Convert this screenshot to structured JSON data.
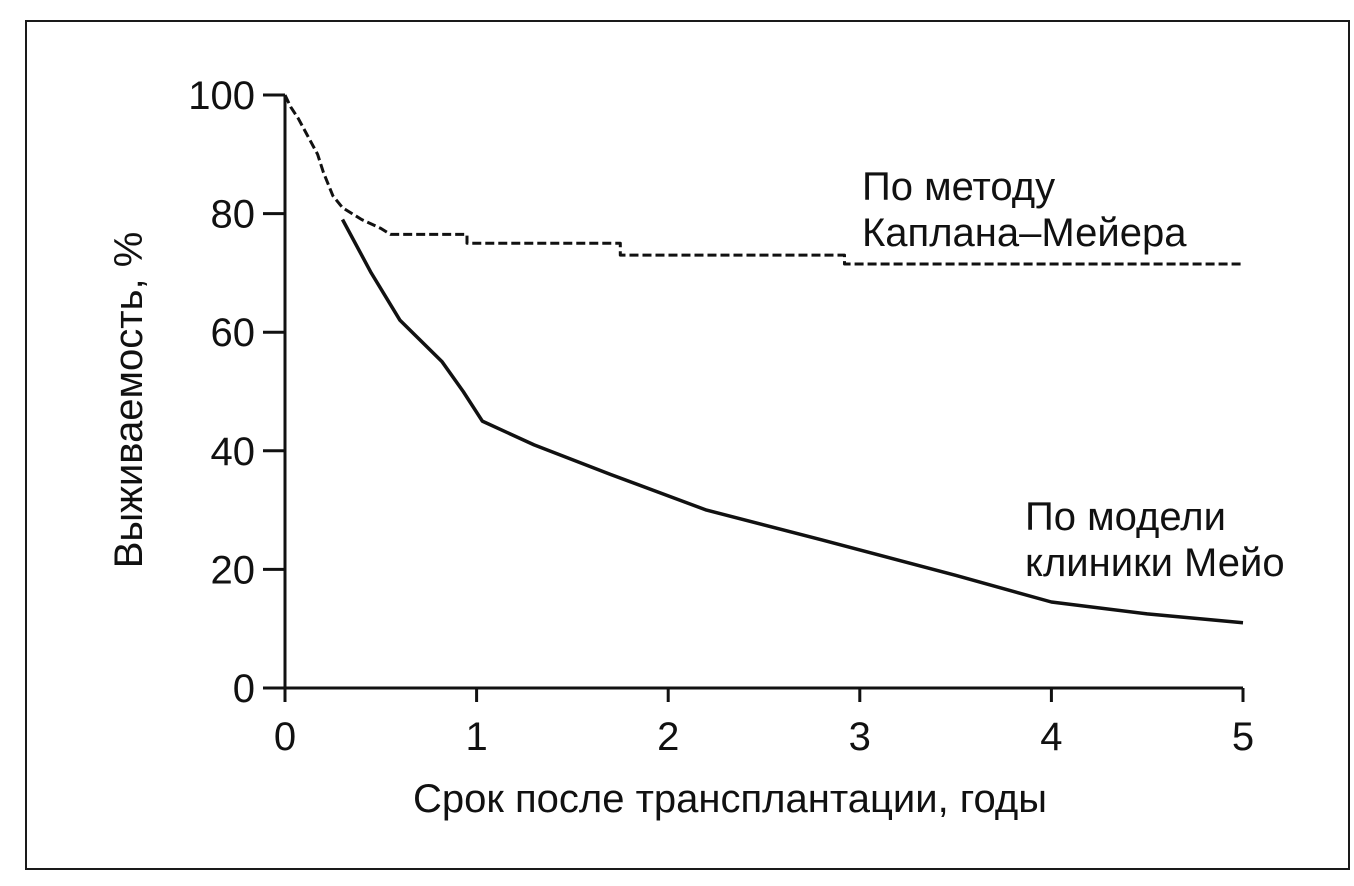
{
  "chart_data": {
    "type": "line",
    "xlabel": "Срок после трансплантации, годы",
    "ylabel": "Выживаемость, %",
    "xlim": [
      0,
      5
    ],
    "ylim": [
      0,
      100
    ],
    "x_ticks": [
      0,
      1,
      2,
      3,
      4,
      5
    ],
    "y_ticks": [
      0,
      20,
      40,
      60,
      80,
      100
    ],
    "grid": false,
    "series": [
      {
        "name": "По модели клиники Мейо",
        "style": "solid",
        "color": "#111111",
        "annotation_lines": [
          "По модели",
          "клиники Мейо"
        ],
        "points": [
          [
            0.3,
            79
          ],
          [
            0.45,
            70
          ],
          [
            0.6,
            62
          ],
          [
            0.82,
            55
          ],
          [
            0.93,
            50
          ],
          [
            1.03,
            45
          ],
          [
            1.3,
            41
          ],
          [
            1.7,
            36
          ],
          [
            2.2,
            30
          ],
          [
            2.8,
            25
          ],
          [
            3.5,
            19
          ],
          [
            4.0,
            14.5
          ],
          [
            4.5,
            12.5
          ],
          [
            5.0,
            11
          ]
        ]
      },
      {
        "name": "По методу Каплана–Мейера",
        "style": "dashed",
        "color": "#111111",
        "annotation_lines": [
          "По методу",
          "Каплана–Мейера"
        ],
        "points": [
          [
            0,
            100
          ],
          [
            0.03,
            98
          ],
          [
            0.07,
            96
          ],
          [
            0.12,
            93
          ],
          [
            0.17,
            90
          ],
          [
            0.2,
            87
          ],
          [
            0.25,
            83
          ],
          [
            0.3,
            81
          ],
          [
            0.4,
            79
          ],
          [
            0.5,
            77.5
          ],
          [
            0.55,
            76.5
          ],
          [
            0.95,
            76.5
          ],
          [
            0.95,
            75
          ],
          [
            1.75,
            75
          ],
          [
            1.75,
            73
          ],
          [
            2.92,
            73
          ],
          [
            2.92,
            71.5
          ],
          [
            5.0,
            71.5
          ]
        ]
      }
    ]
  }
}
